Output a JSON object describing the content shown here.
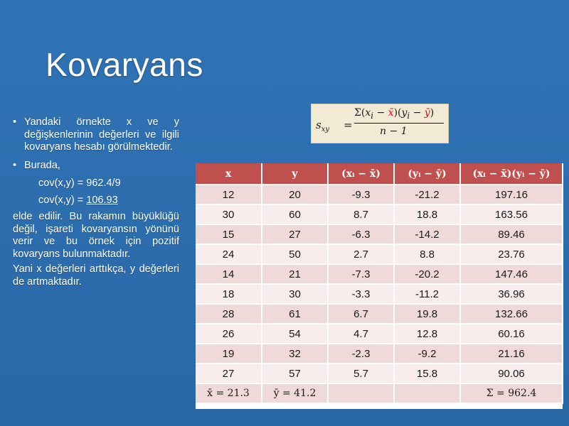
{
  "slide": {
    "title": "Kovaryans",
    "bullet1": "Yandaki örnekte x ve y değişkenlerinin değerleri ve ilgili kovaryans hesabı görülmektedir.",
    "bullet2": "Burada,",
    "line_cov1": "cov(x,y) = 962.4/9",
    "line_cov2_prefix": "cov(x,y) = ",
    "line_cov2_value": "106.93",
    "para1_first": "elde edilir. Bu rakamın büyüklüğü değil, işareti kovaryansın yönünü verir ve bu örnek için pozitif kovaryans bulunmaktadır.",
    "para2": "Yani x değerleri arttıkça, y değerleri de artmaktadır."
  },
  "formula": {
    "lhs": "s",
    "lhs_sub": "xy",
    "eq": "=",
    "numerator_parts": [
      "Σ(",
      "x",
      "i",
      " − ",
      "x̄",
      ")(",
      "y",
      "i",
      " − ",
      "ȳ",
      ")"
    ],
    "denominator": "n − 1",
    "highlight_color": "#d01010"
  },
  "table": {
    "headers": [
      "x",
      "y",
      "(xᵢ − x̄)",
      "(yᵢ − ȳ)",
      "(xᵢ − x̄)(yᵢ − ȳ)"
    ],
    "rows": [
      [
        "12",
        "20",
        "-9.3",
        "-21.2",
        "197.16"
      ],
      [
        "30",
        "60",
        "8.7",
        "18.8",
        "163.56"
      ],
      [
        "15",
        "27",
        "-6.3",
        "-14.2",
        "89.46"
      ],
      [
        "24",
        "50",
        "2.7",
        "8.8",
        "23.76"
      ],
      [
        "14",
        "21",
        "-7.3",
        "-20.2",
        "147.46"
      ],
      [
        "18",
        "30",
        "-3.3",
        "-11.2",
        "36.96"
      ],
      [
        "28",
        "61",
        "6.7",
        "19.8",
        "132.66"
      ],
      [
        "26",
        "54",
        "4.7",
        "12.8",
        "60.16"
      ],
      [
        "19",
        "32",
        "-2.3",
        "-9.2",
        "21.16"
      ],
      [
        "27",
        "57",
        "5.7",
        "15.8",
        "90.06"
      ]
    ],
    "footer": [
      "x̄ = 21.3",
      "ȳ = 41.2",
      "",
      "",
      "Σ = 962.4"
    ],
    "header_color": "#c0504d",
    "row_color_a": "#f0d9d9",
    "row_color_b": "#f8ecec"
  },
  "colors": {
    "background": "#2e6fae",
    "text": "#ffffff"
  }
}
